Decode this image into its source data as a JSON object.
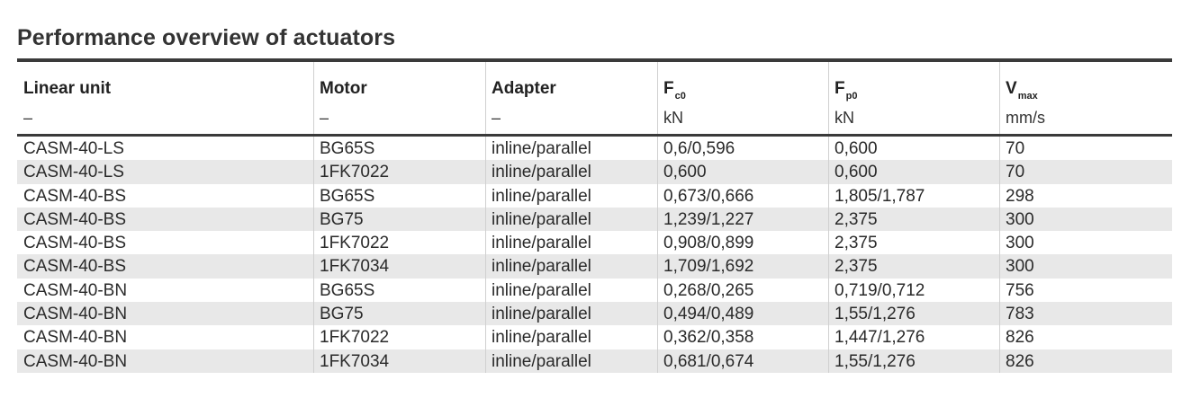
{
  "title": "Performance overview of actuators",
  "table": {
    "columns": [
      {
        "name": "Linear unit",
        "sub": "",
        "unit": "–"
      },
      {
        "name": "Motor",
        "sub": "",
        "unit": "–"
      },
      {
        "name": "Adapter",
        "sub": "",
        "unit": "–"
      },
      {
        "name": "F",
        "sub": "c0",
        "unit": "kN"
      },
      {
        "name": "F",
        "sub": "p0",
        "unit": "kN"
      },
      {
        "name": "V",
        "sub": "max",
        "unit": "mm/s"
      }
    ],
    "rows": [
      [
        "CASM-40-LS",
        "BG65S",
        "inline/parallel",
        "0,6/0,596",
        "0,600",
        "70"
      ],
      [
        "CASM-40-LS",
        "1FK7022",
        "inline/parallel",
        "0,600",
        "0,600",
        "70"
      ],
      [
        "CASM-40-BS",
        "BG65S",
        "inline/parallel",
        "0,673/0,666",
        "1,805/1,787",
        "298"
      ],
      [
        "CASM-40-BS",
        "BG75",
        "inline/parallel",
        "1,239/1,227",
        "2,375",
        "300"
      ],
      [
        "CASM-40-BS",
        "1FK7022",
        "inline/parallel",
        "0,908/0,899",
        "2,375",
        "300"
      ],
      [
        "CASM-40-BS",
        "1FK7034",
        "inline/parallel",
        "1,709/1,692",
        "2,375",
        "300"
      ],
      [
        "CASM-40-BN",
        "BG65S",
        "inline/parallel",
        "0,268/0,265",
        "0,719/0,712",
        "756"
      ],
      [
        "CASM-40-BN",
        "BG75",
        "inline/parallel",
        "0,494/0,489",
        "1,55/1,276",
        "783"
      ],
      [
        "CASM-40-BN",
        "1FK7022",
        "inline/parallel",
        "0,362/0,358",
        "1,447/1,276",
        "826"
      ],
      [
        "CASM-40-BN",
        "1FK7034",
        "inline/parallel",
        "0,681/0,674",
        "1,55/1,276",
        "826"
      ]
    ]
  }
}
